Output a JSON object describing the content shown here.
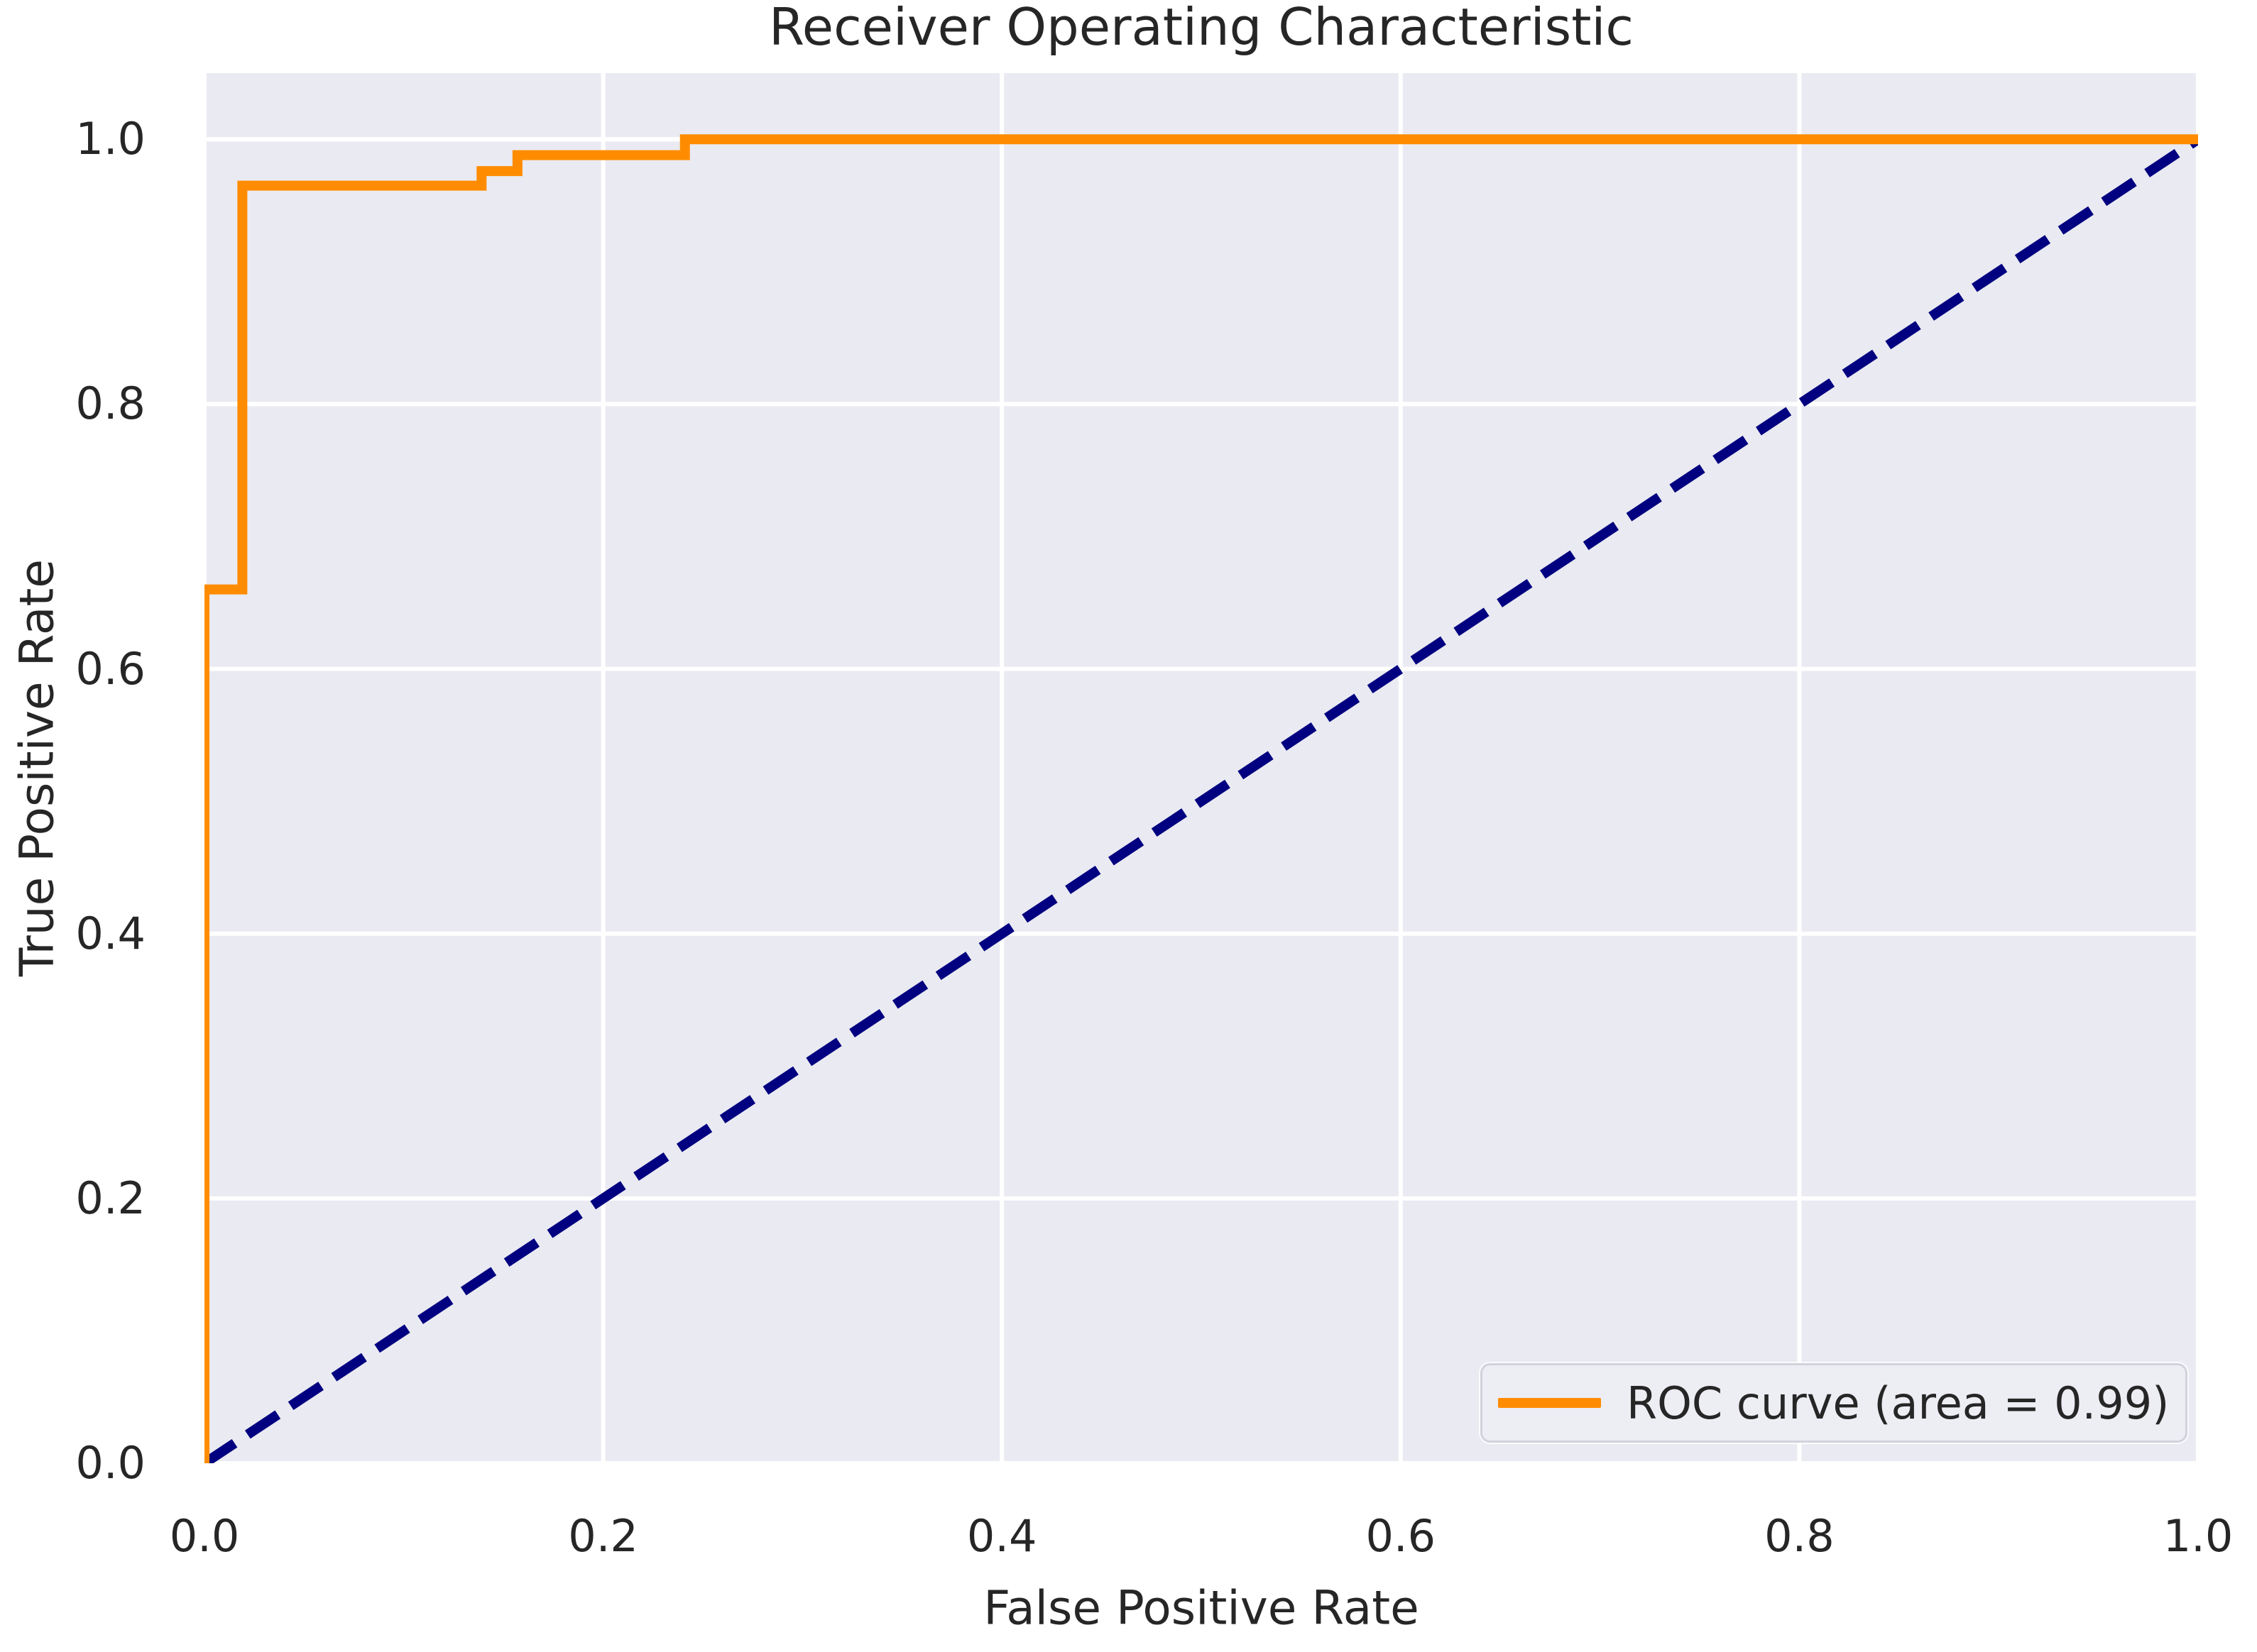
{
  "chart_data": {
    "type": "line",
    "title": "Receiver Operating Characteristic",
    "xlabel": "False Positive Rate",
    "ylabel": "True Positive Rate",
    "xlim": [
      0.0,
      1.0
    ],
    "ylim": [
      0.0,
      1.05
    ],
    "x_ticks": [
      0.0,
      0.2,
      0.4,
      0.6,
      0.8,
      1.0
    ],
    "y_ticks": [
      0.0,
      0.2,
      0.4,
      0.6,
      0.8,
      1.0
    ],
    "x_tick_labels": [
      "0.0",
      "0.2",
      "0.4",
      "0.6",
      "0.8",
      "1.0"
    ],
    "y_tick_labels": [
      "0.0",
      "0.2",
      "0.4",
      "0.6",
      "0.8",
      "1.0"
    ],
    "grid": true,
    "legend_position": "lower right",
    "colors": {
      "plot_background": "#eaeaf2",
      "figure_background": "#ffffff",
      "grid": "#ffffff",
      "text": "#262626",
      "roc_curve": "#ff8c00",
      "chance_line": "#000080"
    },
    "series": [
      {
        "name": "roc-curve",
        "legend_label": "ROC curve (area = 0.99)",
        "auc": 0.99,
        "color": "#ff8c00",
        "style": "solid",
        "points": [
          [
            0.0,
            0.0
          ],
          [
            0.0,
            0.66
          ],
          [
            0.019,
            0.66
          ],
          [
            0.019,
            0.965
          ],
          [
            0.139,
            0.965
          ],
          [
            0.139,
            0.976
          ],
          [
            0.157,
            0.976
          ],
          [
            0.157,
            0.988
          ],
          [
            0.241,
            0.988
          ],
          [
            0.241,
            1.0
          ],
          [
            1.0,
            1.0
          ]
        ]
      },
      {
        "name": "chance-diagonal",
        "legend_label": null,
        "color": "#000080",
        "style": "dashed",
        "points": [
          [
            0.0,
            0.0
          ],
          [
            1.0,
            1.0
          ]
        ]
      }
    ]
  }
}
